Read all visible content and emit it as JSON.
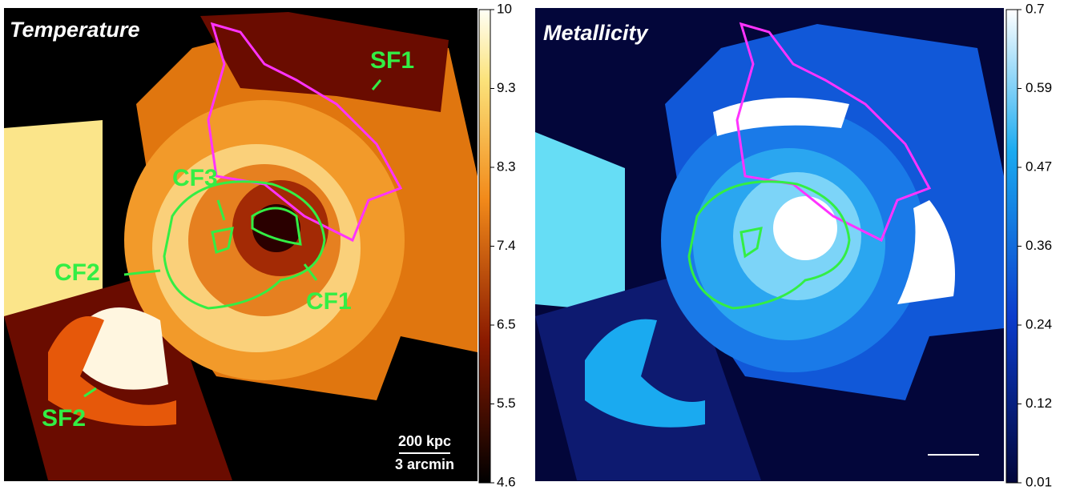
{
  "panels": [
    {
      "title": "Temperature",
      "colorbar": {
        "ticks": [
          10,
          9.3,
          8.3,
          7.4,
          6.5,
          5.5,
          4.6
        ]
      },
      "annotations": [
        "SF1",
        "SF2",
        "CF1",
        "CF2",
        "CF3"
      ],
      "scale_bar": [
        "200 kpc",
        "3 arcmin"
      ]
    },
    {
      "title": "Metallicity",
      "colorbar": {
        "ticks": [
          0.7,
          0.59,
          0.47,
          0.36,
          0.24,
          0.12,
          0.01
        ]
      }
    }
  ]
}
